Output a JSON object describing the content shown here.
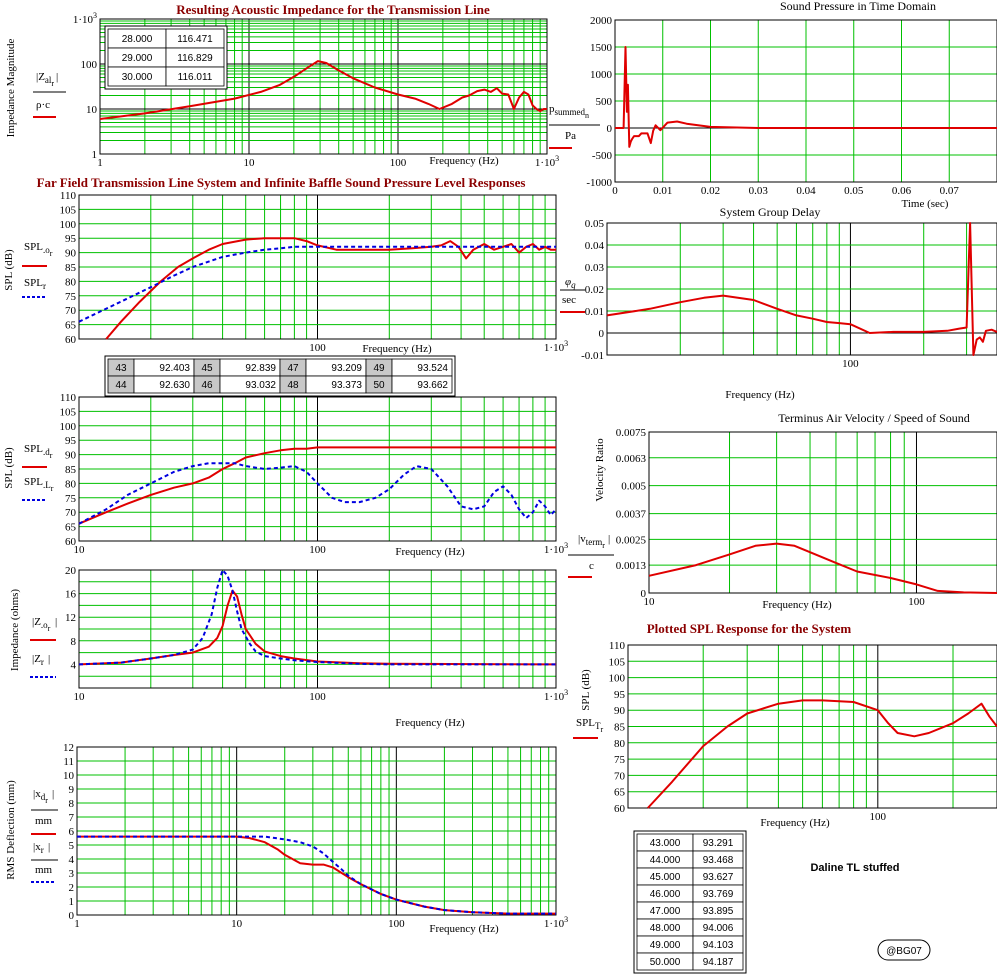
{
  "colors": {
    "grid": "#00c000",
    "red": "#e00000",
    "blue": "#0000e0",
    "title_red": "#8b0000",
    "cell_gray": "#c8c8c8"
  },
  "note": "Daline TL stuffed",
  "badge": "@BG07",
  "impedance_table": [
    [
      "28.000",
      "116.471"
    ],
    [
      "29.000",
      "116.829"
    ],
    [
      "30.000",
      "116.011"
    ]
  ],
  "spl_table": [
    [
      "43",
      "92.403"
    ],
    [
      "44",
      "92.630"
    ],
    [
      "45",
      "92.839"
    ],
    [
      "46",
      "93.032"
    ],
    [
      "47",
      "93.209"
    ],
    [
      "48",
      "93.373"
    ],
    [
      "49",
      "93.524"
    ],
    [
      "50",
      "93.662"
    ]
  ],
  "system_table": [
    [
      "43.000",
      "93.291"
    ],
    [
      "44.000",
      "93.468"
    ],
    [
      "45.000",
      "93.627"
    ],
    [
      "46.000",
      "93.769"
    ],
    [
      "47.000",
      "93.895"
    ],
    [
      "48.000",
      "94.006"
    ],
    [
      "49.000",
      "94.103"
    ],
    [
      "50.000",
      "94.187"
    ]
  ],
  "chart_data": [
    {
      "id": "imp",
      "type": "line",
      "title": "Resulting Acoustic Impedance for the Transmission Line",
      "xlabel": "Frequency (Hz)",
      "ylabel": "Impedance Magnitude",
      "xscale": "log",
      "yscale": "log",
      "xlim": [
        1,
        1000
      ],
      "ylim": [
        1,
        1000
      ],
      "xticks": [
        "1",
        "10",
        "100",
        "1·10³"
      ],
      "yticks": [
        "1",
        "10",
        "100",
        "1·10³"
      ],
      "legend": [
        {
          "label": "|Z_al_r| / ρ·c",
          "color": "red"
        }
      ],
      "series": [
        {
          "color": "red",
          "dashed": false,
          "x": [
            1,
            2,
            4,
            8,
            12,
            16,
            20,
            25,
            29,
            33,
            40,
            50,
            70,
            100,
            130,
            160,
            190,
            230,
            270,
            300,
            340,
            380,
            420,
            460,
            500,
            550,
            600,
            650,
            700,
            750,
            800,
            850,
            900,
            950,
            1000
          ],
          "y": [
            6,
            8,
            11.5,
            17,
            24,
            34,
            52,
            85,
            116,
            105,
            72,
            48,
            30,
            21,
            17,
            13,
            10,
            13,
            18,
            20,
            25,
            27,
            24,
            29,
            22,
            21,
            10,
            18,
            24,
            21,
            12,
            10,
            9,
            10,
            10
          ]
        }
      ]
    },
    {
      "id": "spl1",
      "type": "line",
      "title": "Far Field Transmission Line System and Infinite Baffle Sound Pressure Level Responses",
      "xlabel": "Frequency (Hz)",
      "ylabel": "SPL (dB)",
      "xscale": "log",
      "xlim": [
        10,
        1000
      ],
      "ylim": [
        60,
        110
      ],
      "xticks": [
        "100",
        "1·10³"
      ],
      "yticks": [
        "60",
        "65",
        "70",
        "75",
        "80",
        "85",
        "90",
        "95",
        "100",
        "105",
        "110"
      ],
      "legend": [
        {
          "label": "SPL_o_r",
          "color": "red"
        },
        {
          "label": "SPL_r",
          "color": "blue"
        }
      ],
      "series": [
        {
          "color": "red",
          "dashed": false,
          "x": [
            13,
            15,
            18,
            22,
            26,
            30,
            35,
            40,
            50,
            60,
            70,
            80,
            90,
            100,
            120,
            150,
            200,
            250,
            300,
            330,
            360,
            390,
            420,
            450,
            500,
            550,
            600,
            650,
            700,
            750,
            800,
            850,
            900,
            950,
            1000
          ],
          "y": [
            60,
            66,
            73,
            80,
            85,
            88,
            91,
            93,
            94.5,
            95,
            95,
            95,
            94,
            92.5,
            91,
            91,
            91,
            91.5,
            92,
            92.5,
            94,
            92,
            88,
            91,
            93,
            91,
            92,
            93,
            90,
            92,
            93,
            91,
            92,
            91,
            91
          ]
        },
        {
          "color": "blue",
          "dashed": true,
          "x": [
            10,
            15,
            20,
            25,
            30,
            40,
            50,
            60,
            70,
            80,
            100,
            130,
            160,
            200,
            300,
            400,
            500,
            600,
            700,
            800,
            1000
          ],
          "y": [
            66,
            73,
            78,
            82,
            85,
            88.5,
            90,
            91,
            91.5,
            92,
            92,
            92,
            92,
            92,
            92,
            92,
            92,
            92,
            92,
            92,
            92
          ]
        }
      ]
    },
    {
      "id": "spl2",
      "type": "line",
      "xlabel": "Frequency (Hz)",
      "ylabel": "SPL (dB)",
      "xscale": "log",
      "xlim": [
        10,
        1000
      ],
      "ylim": [
        60,
        110
      ],
      "xticks": [
        "10",
        "100",
        "1·10³"
      ],
      "yticks": [
        "60",
        "65",
        "70",
        "75",
        "80",
        "85",
        "90",
        "95",
        "100",
        "105",
        "110"
      ],
      "legend": [
        {
          "label": "SPL_d_r",
          "color": "red"
        },
        {
          "label": "SPL_L_r",
          "color": "blue"
        }
      ],
      "series": [
        {
          "color": "red",
          "dashed": false,
          "x": [
            10,
            13,
            16,
            20,
            25,
            30,
            35,
            40,
            45,
            50,
            60,
            70,
            80,
            90,
            100,
            150,
            200,
            300,
            500,
            1000
          ],
          "y": [
            66,
            70,
            73,
            76,
            78.5,
            80,
            82,
            85,
            87,
            89,
            90.5,
            91.5,
            92,
            92,
            92.5,
            92.5,
            92.5,
            92.5,
            92.5,
            92.5
          ]
        },
        {
          "color": "blue",
          "dashed": true,
          "x": [
            10,
            13,
            16,
            20,
            25,
            30,
            35,
            40,
            45,
            50,
            60,
            70,
            80,
            90,
            100,
            115,
            130,
            150,
            175,
            200,
            230,
            260,
            300,
            350,
            400,
            450,
            500,
            550,
            600,
            650,
            700,
            750,
            800,
            850,
            900,
            950,
            1000
          ],
          "y": [
            66,
            71,
            76,
            80,
            84,
            86,
            87,
            87,
            87,
            86,
            85,
            85.5,
            86,
            84,
            80,
            75,
            73.5,
            73.5,
            75,
            78,
            83,
            86,
            85,
            79,
            72,
            71,
            72,
            77,
            79,
            76,
            71,
            68,
            70,
            74,
            72,
            69,
            71
          ]
        }
      ]
    },
    {
      "id": "ohms",
      "type": "line",
      "xlabel": "Frequency (Hz)",
      "ylabel": "Impedance (ohms)",
      "xscale": "log",
      "xlim": [
        10,
        1000
      ],
      "ylim": [
        0,
        20
      ],
      "xticks": [
        "10",
        "100",
        "1·10³"
      ],
      "yticks": [
        "4",
        "8",
        "12",
        "16",
        "20"
      ],
      "legend": [
        {
          "label": "|Z_o_r|",
          "color": "red"
        },
        {
          "label": "|Z_r|",
          "color": "blue"
        }
      ],
      "series": [
        {
          "color": "red",
          "dashed": false,
          "x": [
            10,
            15,
            20,
            25,
            30,
            35,
            38,
            40,
            42,
            44,
            46,
            48,
            50,
            55,
            60,
            70,
            80,
            100,
            150,
            200,
            1000
          ],
          "y": [
            4,
            4.3,
            5,
            5.6,
            6,
            7,
            8.5,
            10.5,
            14,
            16.5,
            15.5,
            12.5,
            10,
            7.5,
            6.2,
            5.4,
            5,
            4.5,
            4.2,
            4.1,
            4
          ]
        },
        {
          "color": "blue",
          "dashed": true,
          "x": [
            10,
            15,
            20,
            25,
            30,
            33,
            36,
            38,
            40,
            42,
            44,
            46,
            48,
            52,
            55,
            60,
            70,
            80,
            100,
            150,
            200,
            1000
          ],
          "y": [
            4,
            4.3,
            5,
            5.6,
            6.5,
            8.5,
            12.5,
            17,
            20,
            19,
            16.5,
            13,
            10,
            7.5,
            6.2,
            5.4,
            5,
            4.7,
            4.4,
            4.1,
            4,
            4
          ]
        }
      ]
    },
    {
      "id": "defl",
      "type": "line",
      "xlabel": "Frequency (Hz)",
      "ylabel": "RMS Deflection (mm)",
      "xscale": "log",
      "xlim": [
        1,
        1000
      ],
      "ylim": [
        0,
        12
      ],
      "xticks": [
        "1",
        "10",
        "100",
        "1·10³"
      ],
      "yticks": [
        "0",
        "1",
        "2",
        "3",
        "4",
        "5",
        "6",
        "7",
        "8",
        "9",
        "10",
        "11",
        "12"
      ],
      "legend": [
        {
          "label": "|x_d_r| / mm",
          "color": "red"
        },
        {
          "label": "|x_r| / mm",
          "color": "blue"
        }
      ],
      "series": [
        {
          "color": "red",
          "dashed": false,
          "x": [
            1,
            5,
            10,
            12,
            15,
            18,
            20,
            25,
            30,
            35,
            40,
            50,
            60,
            80,
            100,
            150,
            200,
            300,
            500,
            1000
          ],
          "y": [
            5.6,
            5.6,
            5.6,
            5.5,
            5.2,
            4.7,
            4.3,
            3.7,
            3.6,
            3.6,
            3.4,
            2.7,
            2.2,
            1.5,
            1.1,
            0.6,
            0.35,
            0.2,
            0.1,
            0.1
          ]
        },
        {
          "color": "blue",
          "dashed": true,
          "x": [
            1,
            5,
            10,
            15,
            20,
            25,
            30,
            35,
            40,
            45,
            50,
            60,
            80,
            100,
            150,
            200,
            300,
            500,
            1000
          ],
          "y": [
            5.6,
            5.6,
            5.6,
            5.6,
            5.4,
            5.2,
            4.9,
            4.4,
            3.8,
            3.3,
            2.8,
            2.2,
            1.5,
            1.1,
            0.6,
            0.35,
            0.2,
            0.1,
            0.1
          ]
        }
      ]
    },
    {
      "id": "time",
      "type": "line",
      "title": "Sound Pressure in Time Domain",
      "xlabel": "Time (sec)",
      "ylabel": "p_summed_n / Pa",
      "xlim": [
        0,
        0.08
      ],
      "ylim": [
        -1000,
        2000
      ],
      "xticks": [
        "0",
        "0.01",
        "0.02",
        "0.03",
        "0.04",
        "0.05",
        "0.06",
        "0.07"
      ],
      "yticks": [
        "-1000",
        "-500",
        "0",
        "500",
        "1000",
        "1500",
        "2000"
      ],
      "series": [
        {
          "color": "red",
          "dashed": false,
          "x": [
            0,
            0.0018,
            0.0022,
            0.0025,
            0.0027,
            0.003,
            0.0033,
            0.0036,
            0.004,
            0.005,
            0.0055,
            0.006,
            0.0068,
            0.0075,
            0.008,
            0.0085,
            0.0095,
            0.011,
            0.013,
            0.015,
            0.02,
            0.03,
            0.08
          ],
          "y": [
            0,
            0,
            1500,
            300,
            800,
            -350,
            -250,
            -200,
            -150,
            -150,
            -100,
            -100,
            -100,
            -280,
            -50,
            50,
            -40,
            100,
            120,
            80,
            20,
            0,
            0
          ]
        }
      ]
    },
    {
      "id": "gd",
      "type": "line",
      "title": "System Group Delay",
      "xlabel": "Frequency (Hz)",
      "ylabel": "φ_q / sec",
      "xscale": "log",
      "xlim": [
        10,
        400
      ],
      "ylim": [
        -0.01,
        0.05
      ],
      "xticks": [
        "100"
      ],
      "yticks": [
        "-0.01",
        "0",
        "0.01",
        "0.02",
        "0.03",
        "0.04",
        "0.05"
      ],
      "series": [
        {
          "color": "red",
          "dashed": false,
          "x": [
            10,
            15,
            20,
            25,
            30,
            40,
            50,
            60,
            70,
            80,
            90,
            100,
            120,
            150,
            200,
            250,
            280,
            300,
            310,
            320,
            330,
            340,
            350,
            360,
            380,
            400
          ],
          "y": [
            0.008,
            0.011,
            0.014,
            0.016,
            0.017,
            0.015,
            0.011,
            0.008,
            0.0065,
            0.005,
            0.0045,
            0.004,
            0,
            0.0005,
            0.0005,
            0.001,
            0.002,
            0.0025,
            0.05,
            -0.01,
            -0.003,
            -0.002,
            -0.004,
            0.001,
            0.0015,
            0.0005
          ]
        }
      ]
    },
    {
      "id": "vel",
      "type": "line",
      "title": "Terminus Air Velocity / Speed of Sound",
      "xlabel": "Frequency (Hz)",
      "ylabel": "Velocity Ratio",
      "xscale": "log",
      "xlim": [
        10,
        200
      ],
      "ylim": [
        0,
        0.0075
      ],
      "xticks": [
        "10",
        "100"
      ],
      "yticks": [
        "0",
        "0.0013",
        "0.0025",
        "0.0037",
        "0.005",
        "0.0063",
        "0.0075"
      ],
      "legend": [
        {
          "label": "|v_term_r| / c",
          "color": "red"
        }
      ],
      "series": [
        {
          "color": "red",
          "dashed": false,
          "x": [
            10,
            15,
            20,
            25,
            30,
            35,
            40,
            50,
            60,
            80,
            100,
            120,
            150,
            200
          ],
          "y": [
            0.0008,
            0.0013,
            0.0018,
            0.0022,
            0.0023,
            0.0022,
            0.0019,
            0.0014,
            0.001,
            0.0007,
            0.0004,
            0.0001,
            3e-05,
            0
          ]
        }
      ]
    },
    {
      "id": "sys",
      "type": "line",
      "title": "Plotted SPL Response for the System",
      "xlabel": "Frequency (Hz)",
      "ylabel": "SPL (dB)",
      "xscale": "log",
      "xlim": [
        10,
        300
      ],
      "ylim": [
        60,
        110
      ],
      "xticks": [
        "100"
      ],
      "yticks": [
        "60",
        "65",
        "70",
        "75",
        "80",
        "85",
        "90",
        "95",
        "100",
        "105",
        "110"
      ],
      "legend": [
        {
          "label": "SPL_T_r",
          "color": "red"
        }
      ],
      "series": [
        {
          "color": "red",
          "dashed": false,
          "x": [
            12,
            15,
            20,
            25,
            30,
            40,
            50,
            60,
            80,
            100,
            110,
            120,
            140,
            160,
            200,
            230,
            260,
            280,
            300
          ],
          "y": [
            60,
            68,
            79,
            85,
            89,
            92,
            93,
            93,
            92.5,
            90,
            86,
            83,
            82,
            83,
            86,
            89,
            92,
            88,
            85
          ]
        }
      ]
    }
  ]
}
